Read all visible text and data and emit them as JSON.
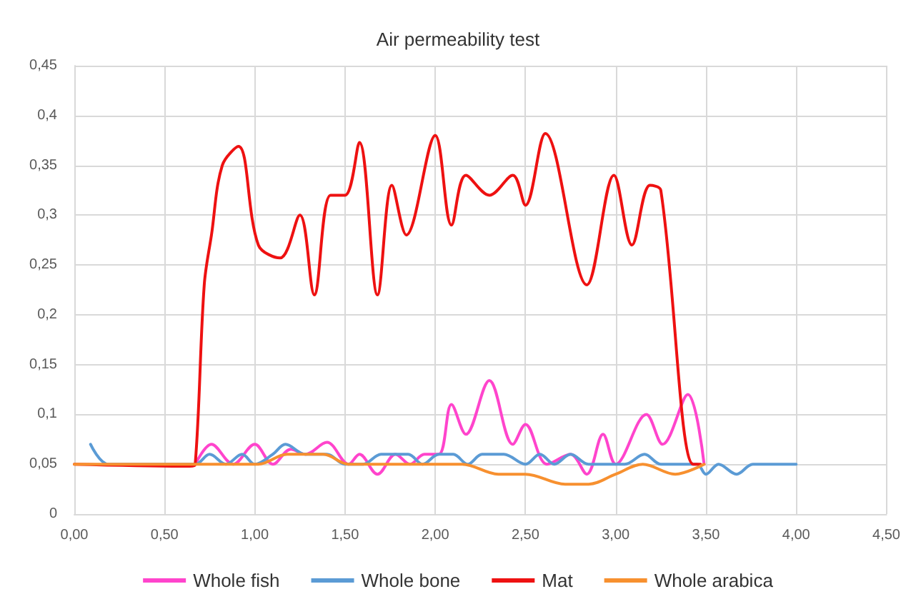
{
  "chart_data": {
    "type": "line",
    "title": "Air permeability test",
    "xlim": [
      0,
      4.5
    ],
    "xticks": [
      {
        "value": 0,
        "label": "0,00"
      },
      {
        "value": 0.5,
        "label": "0,50"
      },
      {
        "value": 1,
        "label": "1,00"
      },
      {
        "value": 1.5,
        "label": "1,50"
      },
      {
        "value": 2,
        "label": "2,00"
      },
      {
        "value": 2.5,
        "label": "2,50"
      },
      {
        "value": 3,
        "label": "3,00"
      },
      {
        "value": 3.5,
        "label": "3,50"
      },
      {
        "value": 4,
        "label": "4,00"
      },
      {
        "value": 4.5,
        "label": "4,50"
      }
    ],
    "ylim": [
      0,
      0.45
    ],
    "yticks": [
      0,
      {
        "value": 0.05,
        "label": "0,05"
      },
      {
        "value": 0.1,
        "label": "0,1"
      },
      {
        "value": 0.15,
        "label": "0,15"
      },
      {
        "value": 0.2,
        "label": "0,2"
      },
      {
        "value": 0.25,
        "label": "0,25"
      },
      {
        "value": 0.3,
        "label": "0,3"
      },
      {
        "value": 0.35,
        "label": "0,35"
      },
      {
        "value": 0.4,
        "label": "0,4"
      },
      {
        "value": 0.45,
        "label": "0,45"
      }
    ],
    "grid": true,
    "legend": "bottom",
    "marker": "none",
    "line_style": "solid",
    "series": [
      {
        "name": "Whole fish",
        "color": "#ff44cc",
        "x": [
          0.67,
          0.76,
          0.88,
          1.0,
          1.1,
          1.2,
          1.28,
          1.4,
          1.52,
          1.58,
          1.68,
          1.78,
          1.86,
          1.94,
          2.02,
          2.09,
          2.17,
          2.3,
          2.43,
          2.5,
          2.62,
          2.75,
          2.84,
          2.93,
          3.0,
          3.17,
          3.26,
          3.4,
          3.49
        ],
        "values": [
          0.05,
          0.07,
          0.05,
          0.07,
          0.05,
          0.065,
          0.06,
          0.072,
          0.05,
          0.06,
          0.04,
          0.06,
          0.05,
          0.06,
          0.06,
          0.11,
          0.08,
          0.134,
          0.07,
          0.09,
          0.05,
          0.06,
          0.04,
          0.08,
          0.05,
          0.1,
          0.07,
          0.12,
          0.05
        ]
      },
      {
        "name": "Whole bone",
        "color": "#5b9bd5",
        "x": [
          0.09,
          0.19,
          0.67,
          0.75,
          0.84,
          0.93,
          1.0,
          1.1,
          1.17,
          1.28,
          1.4,
          1.5,
          1.6,
          1.7,
          1.85,
          1.93,
          2.02,
          2.1,
          2.18,
          2.26,
          2.38,
          2.5,
          2.58,
          2.66,
          2.75,
          2.85,
          3.05,
          3.16,
          3.25,
          3.45,
          3.5,
          3.57,
          3.67,
          3.76,
          4.0
        ],
        "values": [
          0.07,
          0.05,
          0.05,
          0.06,
          0.05,
          0.06,
          0.05,
          0.06,
          0.07,
          0.06,
          0.06,
          0.05,
          0.05,
          0.06,
          0.06,
          0.05,
          0.06,
          0.06,
          0.05,
          0.06,
          0.06,
          0.05,
          0.06,
          0.05,
          0.06,
          0.05,
          0.05,
          0.06,
          0.05,
          0.05,
          0.04,
          0.05,
          0.04,
          0.05,
          0.05
        ]
      },
      {
        "name": "Mat",
        "color": "#ee1111",
        "x": [
          0,
          0.64,
          0.67,
          0.72,
          0.76,
          0.82,
          0.91,
          1.02,
          1.14,
          1.25,
          1.33,
          1.42,
          1.5,
          1.58,
          1.68,
          1.76,
          1.84,
          2.0,
          2.09,
          2.17,
          2.3,
          2.43,
          2.5,
          2.61,
          2.84,
          2.99,
          3.09,
          3.19,
          3.25,
          3.43,
          3.47
        ],
        "values": [
          0.05,
          0.048,
          0.05,
          0.23,
          0.28,
          0.35,
          0.369,
          0.27,
          0.257,
          0.3,
          0.22,
          0.32,
          0.32,
          0.373,
          0.22,
          0.33,
          0.28,
          0.38,
          0.29,
          0.34,
          0.32,
          0.34,
          0.31,
          0.382,
          0.23,
          0.34,
          0.27,
          0.33,
          0.325,
          0.05,
          0.05
        ]
      },
      {
        "name": "Whole arabica",
        "color": "#f7902f",
        "x": [
          0,
          0.95,
          1.02,
          1.18,
          1.38,
          1.52,
          2.0,
          2.15,
          2.35,
          2.5,
          2.72,
          2.85,
          3.0,
          3.15,
          3.33,
          3.49
        ],
        "values": [
          0.05,
          0.05,
          0.05,
          0.06,
          0.06,
          0.05,
          0.05,
          0.05,
          0.04,
          0.04,
          0.03,
          0.03,
          0.04,
          0.05,
          0.04,
          0.05
        ]
      }
    ]
  }
}
